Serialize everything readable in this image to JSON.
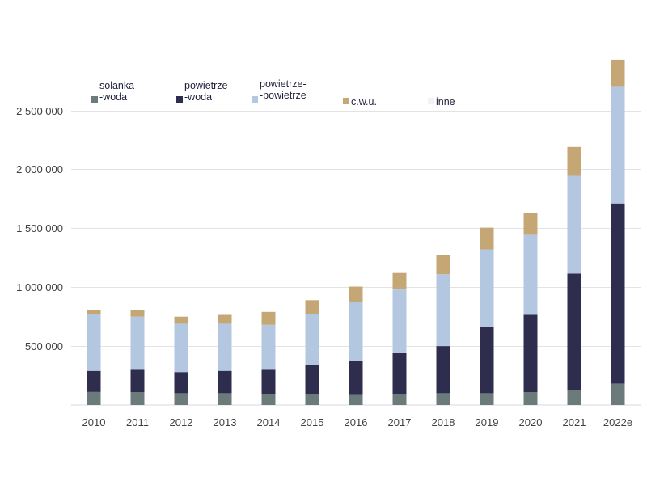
{
  "chart_data": {
    "type": "bar",
    "stacked": true,
    "categories": [
      "2010",
      "2011",
      "2012",
      "2013",
      "2014",
      "2015",
      "2016",
      "2017",
      "2018",
      "2019",
      "2020",
      "2021",
      "2022e"
    ],
    "series": [
      {
        "name": "solanka-\n-woda",
        "color": "#6b7b7b",
        "values": [
          110000,
          110000,
          100000,
          100000,
          90000,
          90000,
          85000,
          90000,
          100000,
          100000,
          110000,
          125000,
          180000
        ]
      },
      {
        "name": "powietrze-\n-woda",
        "color": "#2f2d4e",
        "values": [
          180000,
          190000,
          180000,
          190000,
          210000,
          250000,
          290000,
          350000,
          400000,
          560000,
          655000,
          990000,
          1530000
        ]
      },
      {
        "name": "powietrze-\n-powietrze",
        "color": "#b4c7e0",
        "values": [
          480000,
          450000,
          410000,
          400000,
          380000,
          430000,
          500000,
          540000,
          610000,
          660000,
          680000,
          830000,
          990000
        ]
      },
      {
        "name": "c.w.u.",
        "color": "#c4a774",
        "values": [
          35000,
          55000,
          60000,
          75000,
          110000,
          120000,
          130000,
          140000,
          160000,
          185000,
          185000,
          245000,
          230000
        ]
      },
      {
        "name": "inne",
        "color": "#f2f2f2",
        "values": [
          0,
          0,
          0,
          0,
          0,
          0,
          0,
          0,
          0,
          0,
          0,
          0,
          0
        ]
      }
    ],
    "yticks": [
      500000,
      1000000,
      1500000,
      2000000,
      2500000
    ],
    "ytick_labels": [
      "500 000",
      "1 000 000",
      "1 500 000",
      "2 000 000",
      "2 500 000"
    ],
    "ylim": [
      0,
      2950000
    ],
    "grid": true,
    "legend_position": "top",
    "title": "",
    "xlabel": "",
    "ylabel": ""
  }
}
